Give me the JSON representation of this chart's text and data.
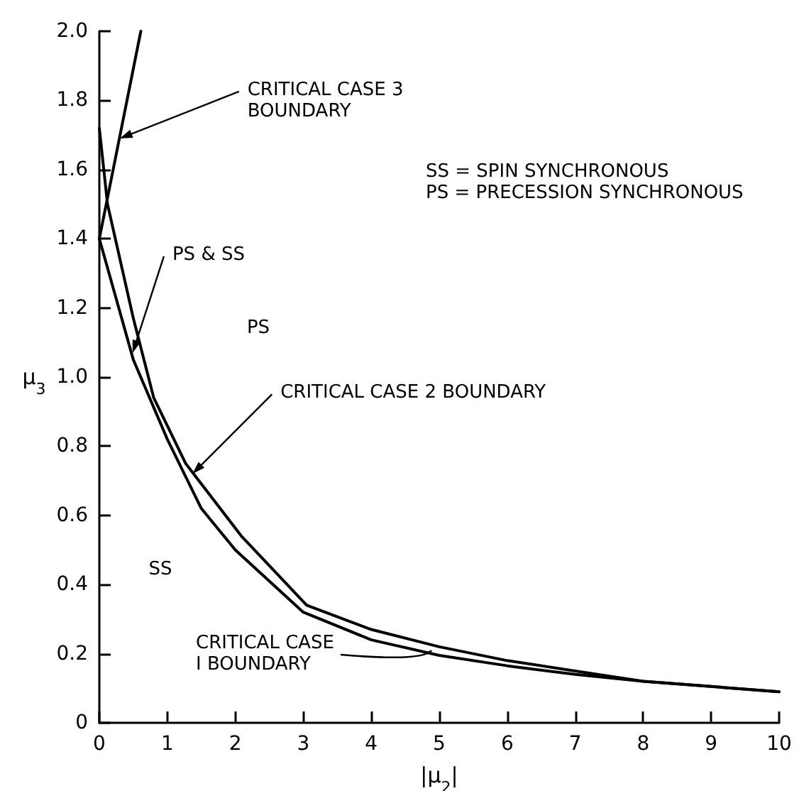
{
  "chart_data": {
    "type": "line",
    "xlabel": "|μ$_{2}$|",
    "ylabel": "μ$_{3}$",
    "xlim": [
      0,
      10
    ],
    "xticks": [
      0,
      1,
      2,
      3,
      4,
      5,
      6,
      7,
      8,
      9,
      10
    ],
    "ylim": [
      0,
      2.0
    ],
    "yticks": [
      0,
      {
        "value": 0.2,
        "label": "0.2"
      },
      {
        "value": 0.4,
        "label": "0.4"
      },
      {
        "value": 0.6,
        "label": "0.6"
      },
      {
        "value": 0.8,
        "label": "0.8"
      },
      {
        "value": 1.0,
        "label": "1.0"
      },
      {
        "value": 1.2,
        "label": "1.2"
      },
      {
        "value": 1.4,
        "label": "1.4"
      },
      {
        "value": 1.6,
        "label": "1.6"
      },
      {
        "value": 1.8,
        "label": "1.8"
      },
      {
        "value": 2.0,
        "label": "2.0"
      }
    ],
    "line_style": "solid",
    "series": [
      {
        "color": "#000000",
        "x": [
          0,
          0.61
        ],
        "values": [
          1.4,
          2.0
        ]
      },
      {
        "color": "#000000",
        "x": [
          0,
          0.5,
          1,
          1.5,
          2,
          3,
          4,
          5,
          6,
          7,
          8,
          9,
          10
        ],
        "values": [
          1.4,
          1.05,
          0.82,
          0.62,
          0.5,
          0.32,
          0.24,
          0.195,
          0.165,
          0.14,
          0.12,
          0.105,
          0.09
        ]
      },
      {
        "color": "#000000",
        "x": [
          0,
          0.12,
          0.5,
          0.8,
          1.27,
          2.09,
          3.05,
          4,
          5,
          6,
          7,
          8,
          9,
          10
        ],
        "values": [
          1.72,
          1.5,
          1.17,
          0.94,
          0.75,
          0.54,
          0.34,
          0.27,
          0.22,
          0.18,
          0.15,
          0.12,
          0.105,
          0.09
        ]
      }
    ],
    "annotations": [
      {
        "text": "CRITICAL CASE 3\nBOUNDARY",
        "x": 0.3,
        "y": 1.69
      },
      "SS = SPIN SYNCHRONOUS\nPS = PRECESSION SYNCHRONOUS",
      {
        "text": "PS & SS",
        "x": 0.49,
        "y": 1.07
      },
      "PS",
      {
        "text": "CRITICAL CASE 2 BOUNDARY",
        "x": 1.37,
        "y": 0.72
      },
      "SS",
      "CRITICAL CASE\nI BOUNDARY"
    ]
  }
}
